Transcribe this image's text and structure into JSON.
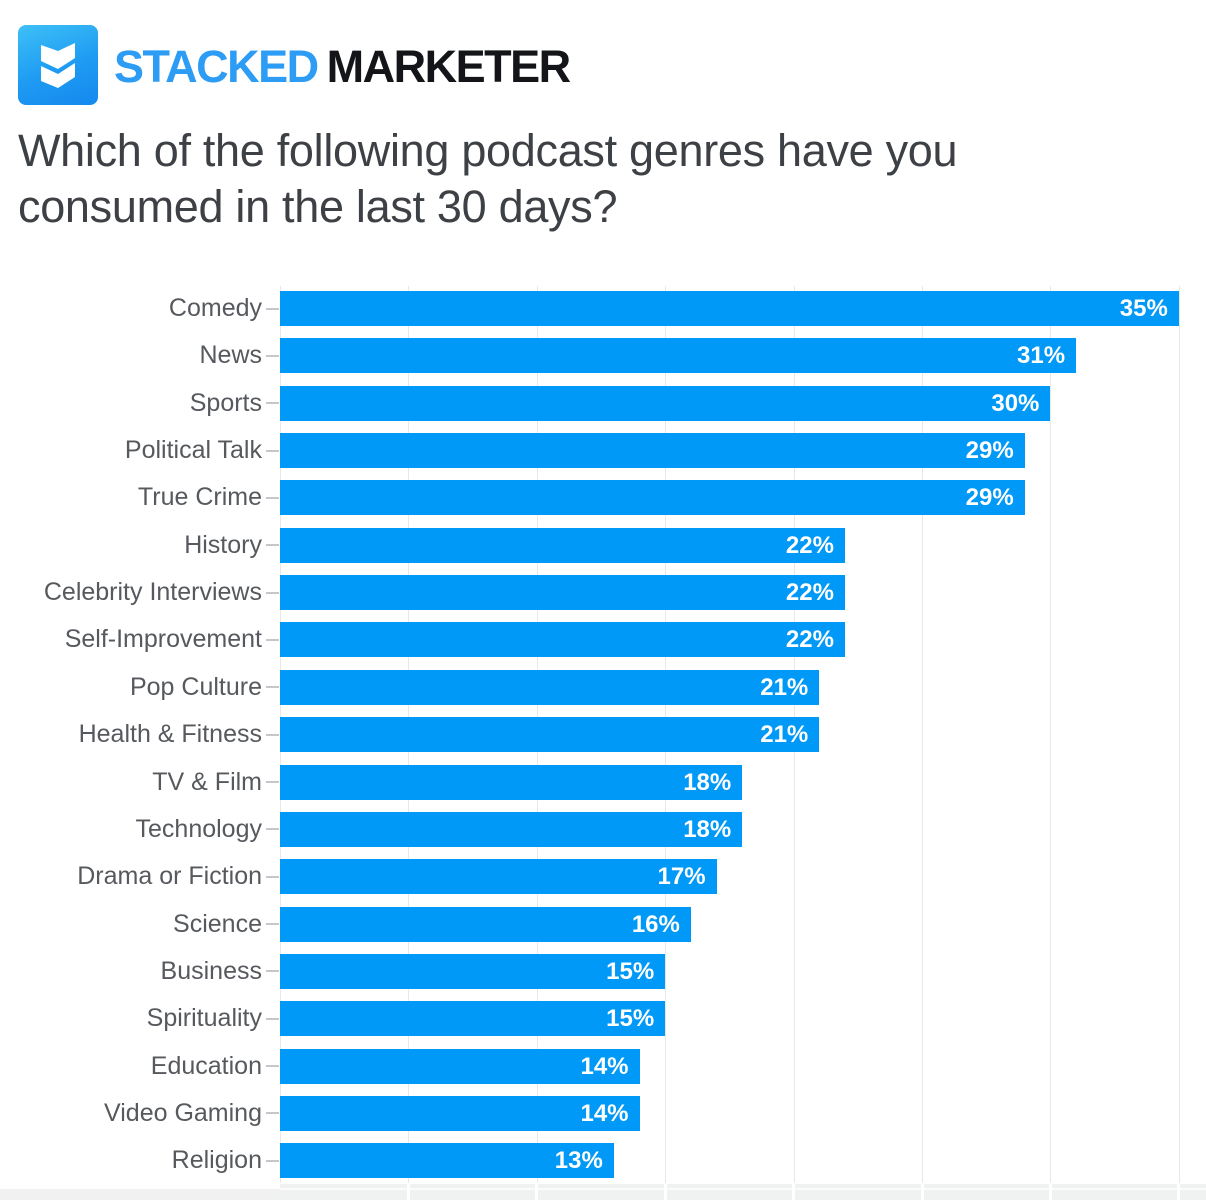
{
  "brand": {
    "primary": "STACKED",
    "secondary": "MARKETER",
    "logo_icon": "stacked-layers-icon",
    "logo_color_top": "#3ec0f7",
    "logo_color_bottom": "#1488ef",
    "primary_color": "#2d9cf5",
    "secondary_color": "#131518"
  },
  "title": "Which of the following podcast genres have you consumed in the last 30 days?",
  "chart_data": {
    "type": "bar",
    "orientation": "horizontal",
    "title": "Which of the following podcast genres have you consumed in the last 30 days?",
    "categories": [
      "Comedy",
      "News",
      "Sports",
      "Political Talk",
      "True Crime",
      "History",
      "Celebrity Interviews",
      "Self-Improvement",
      "Pop Culture",
      "Health & Fitness",
      "TV & Film",
      "Technology",
      "Drama or Fiction",
      "Science",
      "Business",
      "Spirituality",
      "Education",
      "Video Gaming",
      "Religion"
    ],
    "values": [
      35,
      31,
      30,
      29,
      29,
      22,
      22,
      22,
      21,
      21,
      18,
      18,
      17,
      16,
      15,
      15,
      14,
      14,
      13
    ],
    "value_labels": [
      "35%",
      "31%",
      "30%",
      "29%",
      "29%",
      "22%",
      "22%",
      "22%",
      "21%",
      "21%",
      "18%",
      "18%",
      "17%",
      "16%",
      "15%",
      "15%",
      "14%",
      "14%",
      "13%"
    ],
    "value_suffix": "%",
    "xlabel": "",
    "ylabel": "",
    "xlim": [
      0,
      35
    ],
    "gridline_step": 5,
    "grid": true,
    "legend": "none",
    "bar_color": "#0099f7",
    "value_label_color": "#ffffff",
    "value_label_position": "inside-end",
    "category_label_color": "#56595d"
  }
}
